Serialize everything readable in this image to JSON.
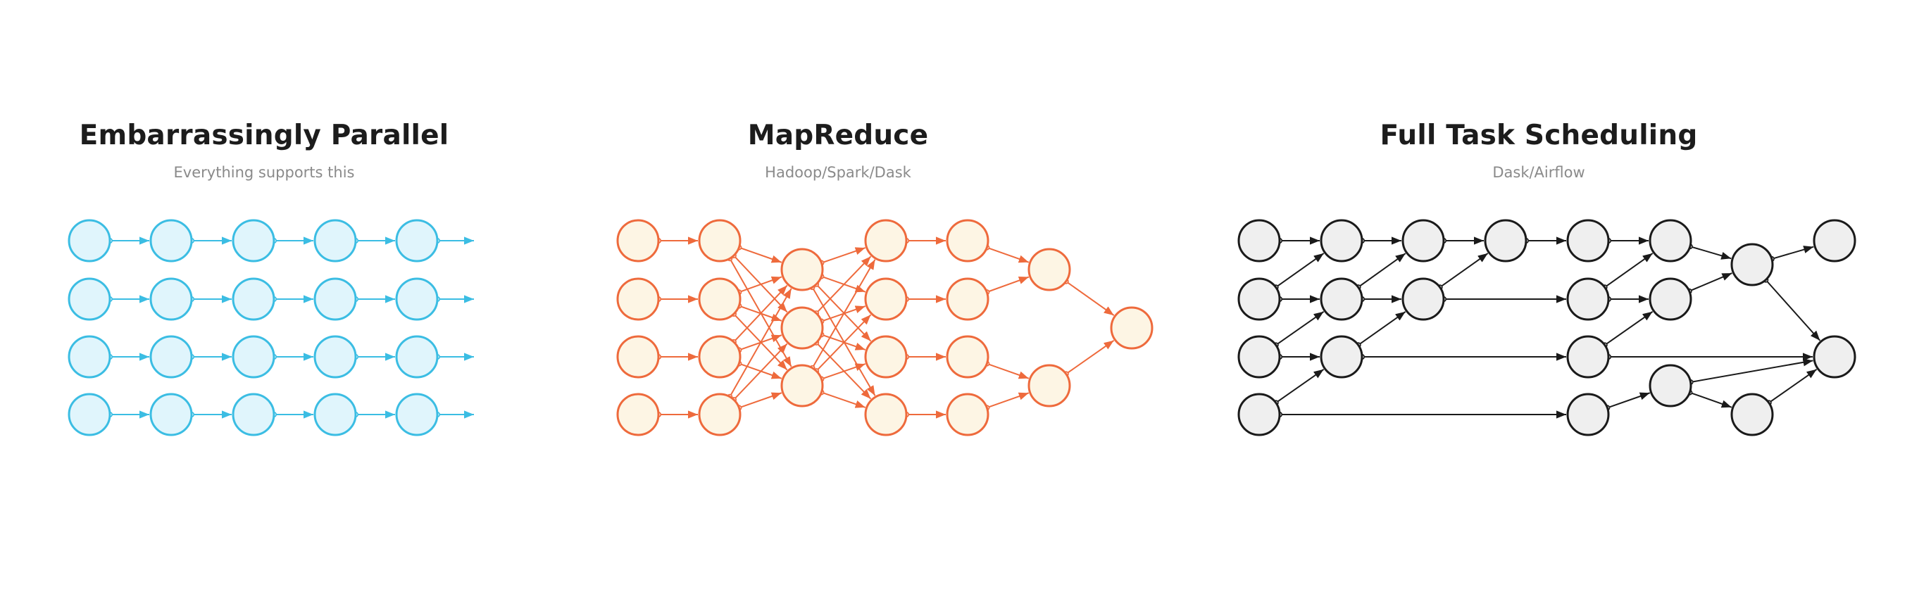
{
  "panels": [
    {
      "key": "parallel",
      "title": "Embarrassingly Parallel",
      "subtitle": "Everything supports this",
      "colors": {
        "stroke": "#3bbde3",
        "fill": "#e0f5fc"
      },
      "nodes": [
        [
          "r0c0",
          "r0c1",
          "r0c2",
          "r0c3",
          "r0c4"
        ],
        [
          "r1c0",
          "r1c1",
          "r1c2",
          "r1c3",
          "r1c4"
        ],
        [
          "r2c0",
          "r2c1",
          "r2c2",
          "r2c3",
          "r2c4"
        ],
        [
          "r3c0",
          "r3c1",
          "r3c2",
          "r3c3",
          "r3c4"
        ]
      ]
    },
    {
      "key": "mapreduce",
      "title": "MapReduce",
      "subtitle": "Hadoop/Spark/Dask",
      "colors": {
        "stroke": "#ee6a3c",
        "fill": "#fdf5e4"
      }
    },
    {
      "key": "scheduling",
      "title": "Full Task Scheduling",
      "subtitle": "Dask/Airflow",
      "colors": {
        "stroke": "#1a1a1a",
        "fill": "#efefef"
      }
    }
  ]
}
